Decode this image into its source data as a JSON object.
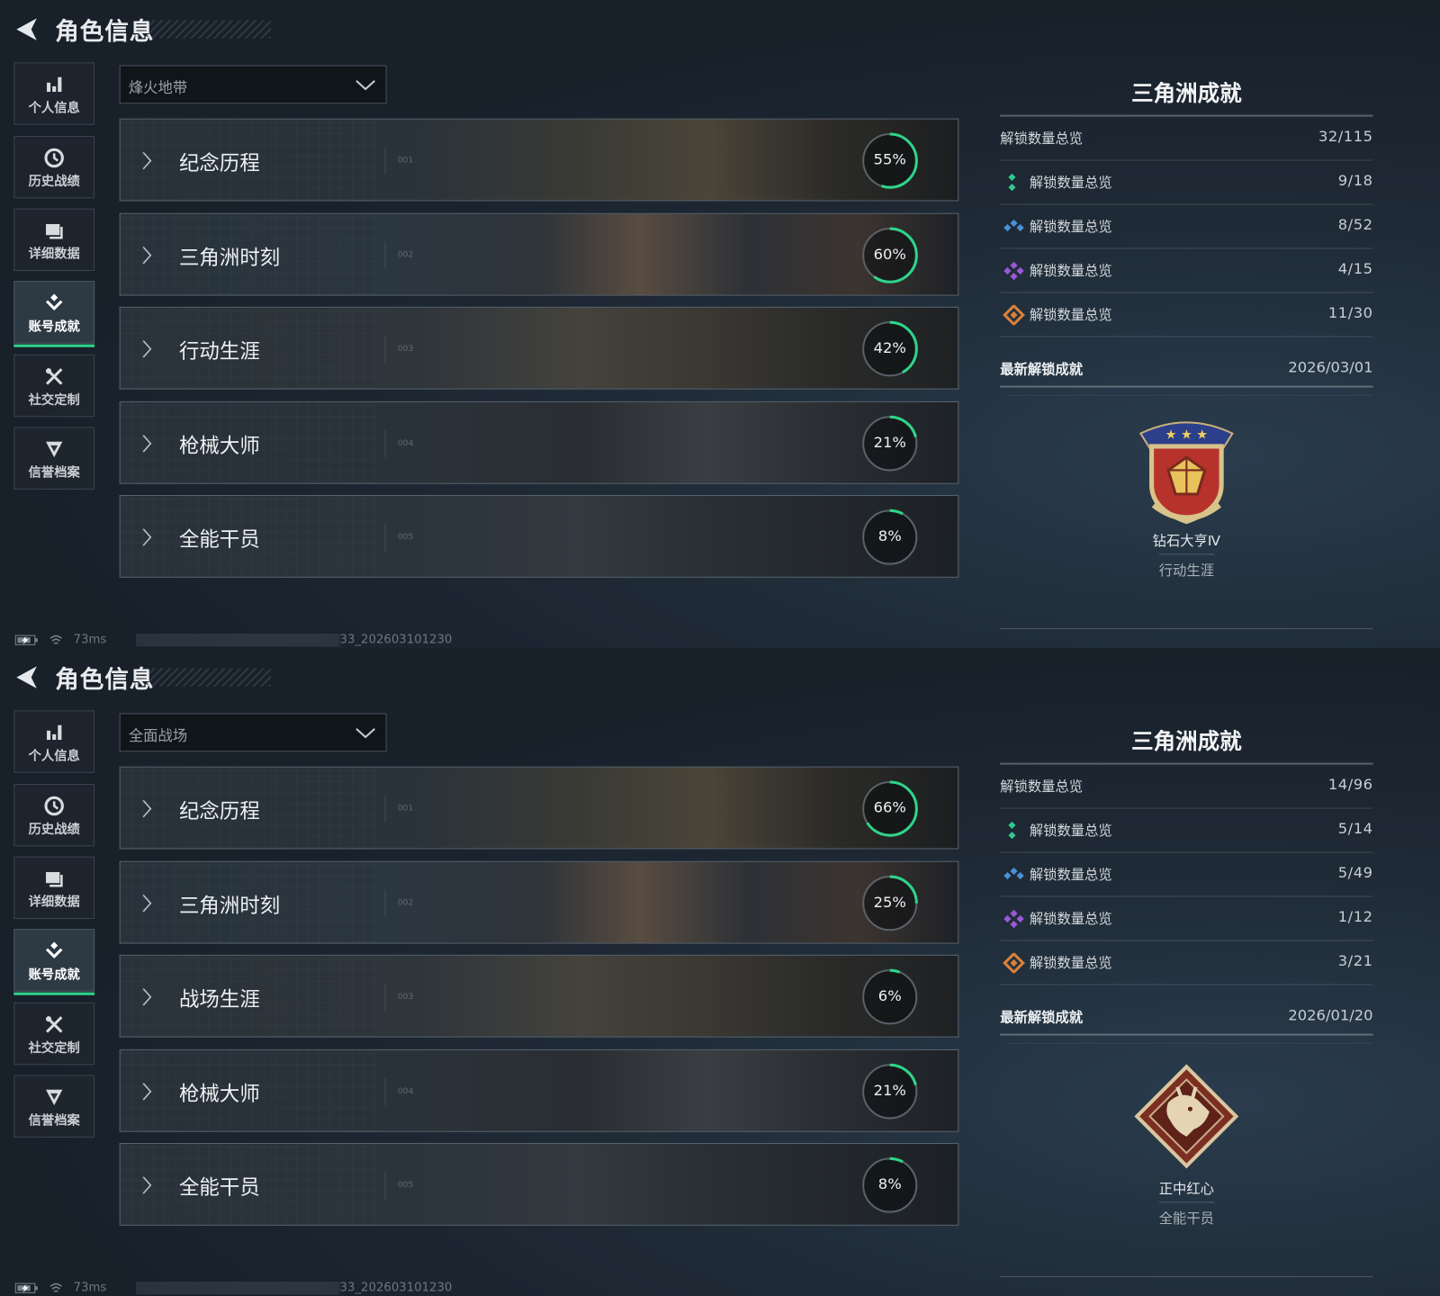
{
  "colors": {
    "accent": "#2fd48a",
    "ring_track": "#5a6168",
    "tier_green": "#2fc98a",
    "tier_blue": "#4a90d9",
    "tier_purple": "#9a5ad8",
    "tier_orange": "#d9813a"
  },
  "panels": [
    {
      "header": {
        "title": "角色信息",
        "back_icon": "back-arrow-icon"
      },
      "nav": {
        "active": 3,
        "items": [
          {
            "label": "个人信息",
            "icon": "bar-chart-icon"
          },
          {
            "label": "历史战绩",
            "icon": "history-clock-icon"
          },
          {
            "label": "详细数据",
            "icon": "folder-icon"
          },
          {
            "label": "账号成就",
            "icon": "achievement-icon"
          },
          {
            "label": "社交定制",
            "icon": "tools-icon"
          },
          {
            "label": "信誉档案",
            "icon": "reputation-icon"
          }
        ]
      },
      "dropdown": {
        "value": "烽火地带"
      },
      "categories": [
        {
          "name": "纪念历程",
          "num": "001",
          "percent": 55
        },
        {
          "name": "三角洲时刻",
          "num": "002",
          "percent": 60
        },
        {
          "name": "行动生涯",
          "num": "003",
          "percent": 42
        },
        {
          "name": "枪械大师",
          "num": "004",
          "percent": 21
        },
        {
          "name": "全能干员",
          "num": "005",
          "percent": 8
        }
      ],
      "summary": {
        "title": "三角洲成就",
        "total_label": "解锁数量总览",
        "total_value": "32/115",
        "tiers": [
          {
            "label": "解锁数量总览",
            "value": "9/18",
            "icon": "tier-green-icon",
            "color": "#2fc98a"
          },
          {
            "label": "解锁数量总览",
            "value": "8/52",
            "icon": "tier-blue-icon",
            "color": "#4a90d9"
          },
          {
            "label": "解锁数量总览",
            "value": "4/15",
            "icon": "tier-purple-icon",
            "color": "#9a5ad8"
          },
          {
            "label": "解锁数量总览",
            "value": "11/30",
            "icon": "tier-orange-icon",
            "color": "#d9813a"
          }
        ],
        "latest_label": "最新解锁成就",
        "latest_date": "2026/03/01",
        "badge_name": "钻石大亨Ⅳ",
        "badge_category": "行动生涯",
        "badge_icon": "diamond-shield-badge-icon"
      },
      "status": {
        "ping": "73ms",
        "code": "33_202603101230"
      }
    },
    {
      "header": {
        "title": "角色信息",
        "back_icon": "back-arrow-icon"
      },
      "nav": {
        "active": 3,
        "items": [
          {
            "label": "个人信息",
            "icon": "bar-chart-icon"
          },
          {
            "label": "历史战绩",
            "icon": "history-clock-icon"
          },
          {
            "label": "详细数据",
            "icon": "folder-icon"
          },
          {
            "label": "账号成就",
            "icon": "achievement-icon"
          },
          {
            "label": "社交定制",
            "icon": "tools-icon"
          },
          {
            "label": "信誉档案",
            "icon": "reputation-icon"
          }
        ]
      },
      "dropdown": {
        "value": "全面战场"
      },
      "categories": [
        {
          "name": "纪念历程",
          "num": "001",
          "percent": 66
        },
        {
          "name": "三角洲时刻",
          "num": "002",
          "percent": 25
        },
        {
          "name": "战场生涯",
          "num": "003",
          "percent": 6
        },
        {
          "name": "枪械大师",
          "num": "004",
          "percent": 21
        },
        {
          "name": "全能干员",
          "num": "005",
          "percent": 8
        }
      ],
      "summary": {
        "title": "三角洲成就",
        "total_label": "解锁数量总览",
        "total_value": "14/96",
        "tiers": [
          {
            "label": "解锁数量总览",
            "value": "5/14",
            "icon": "tier-green-icon",
            "color": "#2fc98a"
          },
          {
            "label": "解锁数量总览",
            "value": "5/49",
            "icon": "tier-blue-icon",
            "color": "#4a90d9"
          },
          {
            "label": "解锁数量总览",
            "value": "1/12",
            "icon": "tier-purple-icon",
            "color": "#9a5ad8"
          },
          {
            "label": "解锁数量总览",
            "value": "3/21",
            "icon": "tier-orange-icon",
            "color": "#d9813a"
          }
        ],
        "latest_label": "最新解锁成就",
        "latest_date": "2026/01/20",
        "badge_name": "正中红心",
        "badge_category": "全能干员",
        "badge_icon": "dragon-diamond-badge-icon"
      },
      "status": {
        "ping": "73ms",
        "code": "33_202603101230"
      }
    }
  ]
}
